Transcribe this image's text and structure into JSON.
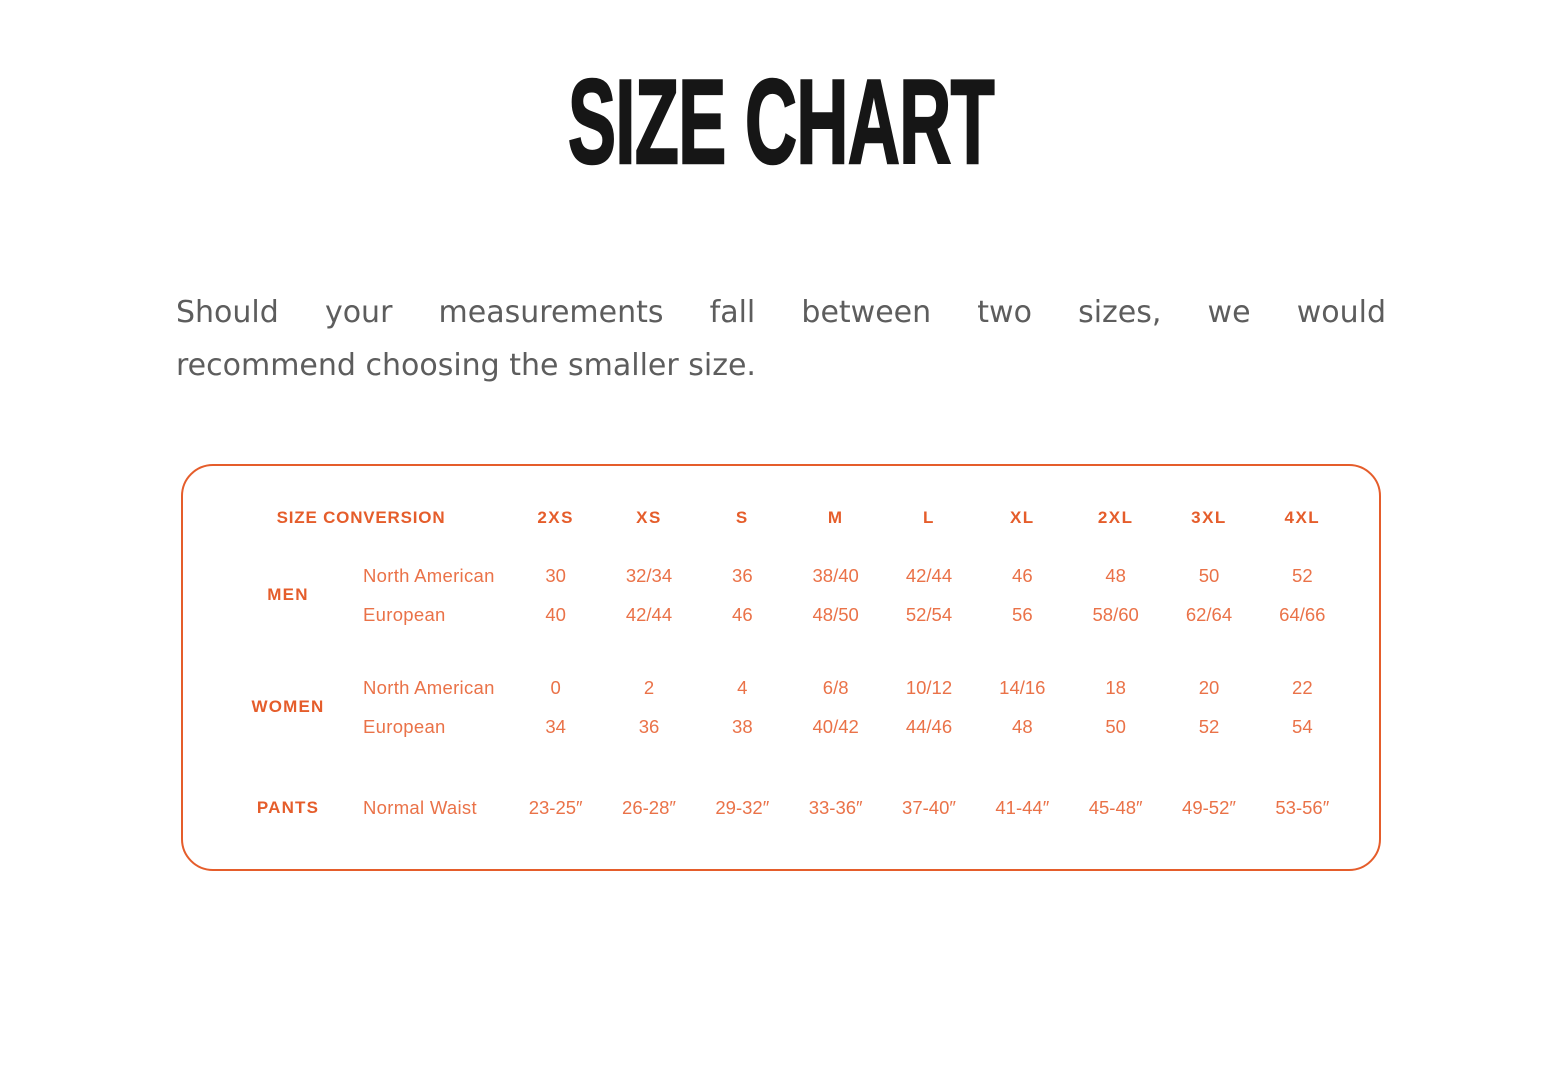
{
  "colors": {
    "accent": "#E55D2B",
    "accent_light": "#EA7248",
    "title_ink": "#161616",
    "paragraph_gray": "#5d5d5d"
  },
  "page": {
    "title": "SIZE CHART",
    "intro_line1": "Should your measurements fall between two sizes, we would",
    "intro_line2": "recommend choosing the smaller size."
  },
  "size_table": {
    "header": {
      "label": "SIZE CONVERSION",
      "sizes": [
        "2XS",
        "XS",
        "S",
        "M",
        "L",
        "XL",
        "2XL",
        "3XL",
        "4XL"
      ]
    },
    "groups": [
      {
        "label": "MEN",
        "rows": [
          {
            "name": "North American",
            "values": [
              "30",
              "32/34",
              "36",
              "38/40",
              "42/44",
              "46",
              "48",
              "50",
              "52"
            ]
          },
          {
            "name": "European",
            "values": [
              "40",
              "42/44",
              "46",
              "48/50",
              "52/54",
              "56",
              "58/60",
              "62/64",
              "64/66"
            ]
          }
        ]
      },
      {
        "label": "WOMEN",
        "rows": [
          {
            "name": "North American",
            "values": [
              "0",
              "2",
              "4",
              "6/8",
              "10/12",
              "14/16",
              "18",
              "20",
              "22"
            ]
          },
          {
            "name": "European",
            "values": [
              "34",
              "36",
              "38",
              "40/42",
              "44/46",
              "48",
              "50",
              "52",
              "54"
            ]
          }
        ]
      },
      {
        "label": "PANTS",
        "rows": [
          {
            "name": "Normal Waist",
            "values": [
              "23-25″",
              "26-28″",
              "29-32″",
              "33-36″",
              "37-40″",
              "41-44″",
              "45-48″",
              "49-52″",
              "53-56″"
            ]
          }
        ]
      }
    ]
  }
}
